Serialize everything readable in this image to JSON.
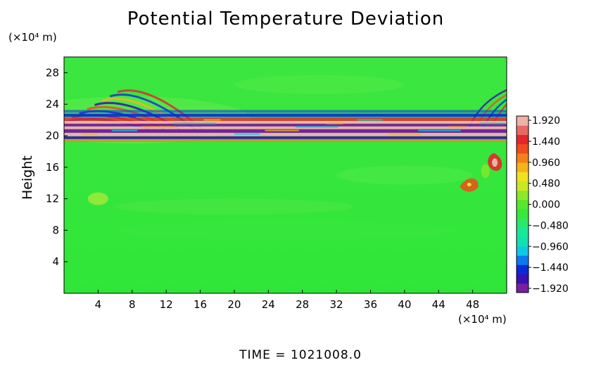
{
  "chart_data": {
    "type": "heatmap",
    "title": "Potential Temperature Deviation",
    "xlabel": "",
    "ylabel": "Height",
    "x_unit": "(×10⁴ m)",
    "y_unit": "(×10⁴ m)",
    "x_ticks": [
      4,
      8,
      12,
      16,
      20,
      24,
      28,
      32,
      36,
      40,
      44,
      48
    ],
    "y_ticks": [
      4,
      8,
      12,
      16,
      20,
      24,
      28
    ],
    "xlim": [
      0,
      52
    ],
    "ylim": [
      0,
      30
    ],
    "colorbar": {
      "labels": [
        "1.920",
        "1.440",
        "0.960",
        "0.480",
        "0.000",
        "−0.480",
        "−0.960",
        "−1.440",
        "−1.920"
      ],
      "range": [
        -1.92,
        1.92
      ],
      "colors": [
        "#7a1fa0",
        "#3a10b0",
        "#0a2ad8",
        "#0b78f0",
        "#0fc8e6",
        "#12e0b0",
        "#17e89a",
        "#2ae86a",
        "#36e83a",
        "#55e82c",
        "#8ee82a",
        "#c8e826",
        "#f0e21f",
        "#f5b41a",
        "#f5801a",
        "#ef4b1c",
        "#e4272a",
        "#e86868",
        "#efb2a8"
      ]
    },
    "features": {
      "background_value": 0.0,
      "strong_layer_height": [
        19.5,
        22.5
      ],
      "wave_region": {
        "x": [
          0,
          10
        ],
        "height": [
          20,
          25
        ]
      },
      "warm_patch": {
        "x": [
          46,
          52
        ],
        "height": [
          13,
          18
        ]
      }
    },
    "footer": "TIME = 1021008.0"
  }
}
